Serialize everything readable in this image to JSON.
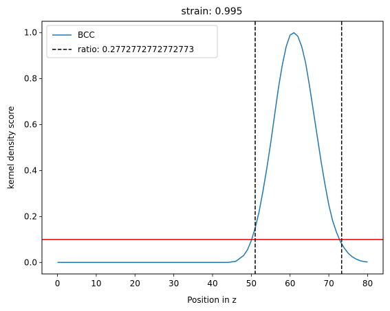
{
  "chart_data": {
    "type": "line",
    "title": "strain: 0.995",
    "xlabel": "Position in z",
    "ylabel": "kernel density score",
    "xlim": [
      -4,
      84
    ],
    "ylim": [
      -0.05,
      1.05
    ],
    "xticks": [
      0,
      10,
      20,
      30,
      40,
      50,
      60,
      70,
      80
    ],
    "yticks": [
      0.0,
      0.2,
      0.4,
      0.6,
      0.8,
      1.0
    ],
    "xtick_labels": [
      "0",
      "10",
      "20",
      "30",
      "40",
      "50",
      "60",
      "70",
      "80"
    ],
    "ytick_labels": [
      "0.0",
      "0.2",
      "0.4",
      "0.6",
      "0.8",
      "1.0"
    ],
    "grid": false,
    "legend_position": "top-left",
    "series": [
      {
        "name": "BCC",
        "color": "#1f77b4",
        "style": "solid",
        "x": [
          0,
          5,
          10,
          15,
          20,
          25,
          30,
          35,
          40,
          44,
          46,
          48,
          49,
          50,
          51,
          52,
          53,
          54,
          55,
          56,
          57,
          58,
          59,
          60,
          61,
          62,
          63,
          64,
          65,
          66,
          67,
          68,
          69,
          70,
          71,
          72,
          73,
          74,
          75,
          76,
          77,
          78,
          79,
          80
        ],
        "y": [
          0.0,
          0.0,
          0.0,
          0.0,
          0.0,
          0.0,
          0.0,
          0.0,
          0.0,
          0.0,
          0.005,
          0.03,
          0.055,
          0.095,
          0.15,
          0.22,
          0.31,
          0.41,
          0.52,
          0.64,
          0.76,
          0.86,
          0.94,
          0.99,
          1.0,
          0.985,
          0.94,
          0.87,
          0.77,
          0.66,
          0.55,
          0.44,
          0.34,
          0.25,
          0.18,
          0.13,
          0.09,
          0.062,
          0.04,
          0.025,
          0.015,
          0.008,
          0.004,
          0.002
        ]
      }
    ],
    "vlines": [
      {
        "x": 51.0,
        "color": "#000000",
        "style": "dashed",
        "legend": "ratio: 0.2772772772772773"
      },
      {
        "x": 73.3,
        "color": "#000000",
        "style": "dashed",
        "legend": ""
      }
    ],
    "hlines": [
      {
        "y": 0.1,
        "color": "#e00000",
        "style": "solid"
      }
    ],
    "legend": [
      {
        "label": "BCC",
        "color": "#1f77b4",
        "style": "solid"
      },
      {
        "label": "ratio: 0.2772772772772773",
        "color": "#000000",
        "style": "dashed"
      }
    ]
  }
}
